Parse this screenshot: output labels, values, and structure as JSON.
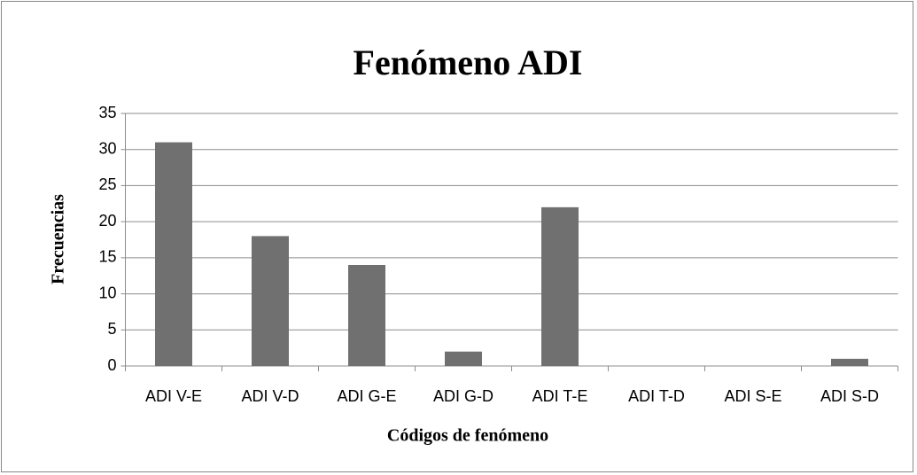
{
  "chart_data": {
    "type": "bar",
    "title": "Fenómeno ADI",
    "x_label": "Códigos de fenómeno",
    "y_label": "Frecuencias",
    "categories": [
      "ADI V-E",
      "ADI V-D",
      "ADI G-E",
      "ADI G-D",
      "ADI T-E",
      "ADI T-D",
      "ADI S-E",
      "ADI S-D"
    ],
    "values": [
      31,
      18,
      14,
      2,
      22,
      0,
      0,
      1
    ],
    "color": "#707070",
    "ylim": [
      0,
      35
    ],
    "yticks": [
      0,
      5,
      10,
      15,
      20,
      25,
      30,
      35
    ],
    "grid": true
  }
}
